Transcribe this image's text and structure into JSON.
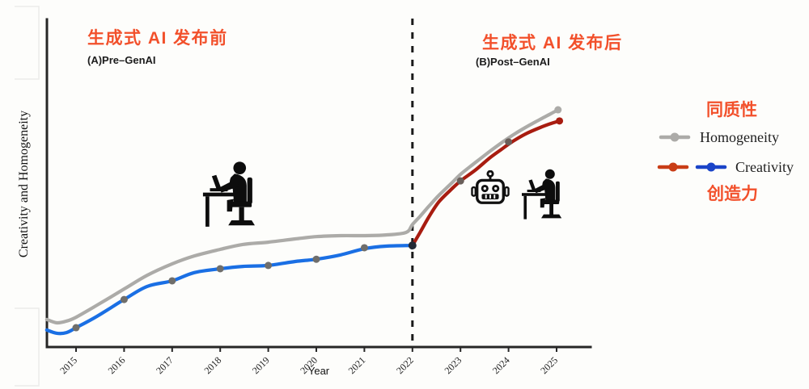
{
  "panels": {
    "pre_title_zh": "生成式 AI 发布前",
    "pre_subtitle": "(A)Pre–GenAI",
    "post_title_zh": "生成式 AI 发布后",
    "post_subtitle": "(B)Post–GenAI"
  },
  "legend": {
    "homogeneity_zh": "同质性",
    "homogeneity_label": "Homogeneity",
    "creativity_label": "Creativity",
    "creativity_zh": "创造力"
  },
  "axes": {
    "ylabel": "Creativity and Homogeneity",
    "xlabel": "Year"
  },
  "colors": {
    "accent_red_text": "#f2502b",
    "homogeneity_line": "#acaba8",
    "creativity_pre_line": "#1a6fe4",
    "creativity_post_line": "#a81c10",
    "legend_creativity_red": "#c93d16",
    "legend_creativity_blue": "#1a44c8",
    "observed_dot": "#6f6e6b",
    "junction_dot": "#232a36",
    "axis": "#262626"
  },
  "chart_data": {
    "type": "line",
    "title": "",
    "xlabel": "Year",
    "ylabel": "Creativity and Homogeneity",
    "x_ticks": [
      2015,
      2016,
      2017,
      2018,
      2019,
      2020,
      2021,
      2022,
      2023,
      2024,
      2025
    ],
    "xlim": [
      2014.4,
      2025.7
    ],
    "ylim": [
      0,
      1
    ],
    "grid": false,
    "legend_position": "right",
    "event_line_x": 2022,
    "series": [
      {
        "name": "Homogeneity",
        "color_key": "homogeneity_line",
        "points": [
          [
            2014.39,
            0.084
          ],
          [
            2014.6,
            0.074
          ],
          [
            2014.8,
            0.079
          ],
          [
            2015,
            0.091
          ],
          [
            2015.44,
            0.128
          ],
          [
            2016,
            0.177
          ],
          [
            2016.48,
            0.219
          ],
          [
            2017,
            0.254
          ],
          [
            2017.46,
            0.278
          ],
          [
            2018,
            0.298
          ],
          [
            2018.47,
            0.313
          ],
          [
            2019,
            0.32
          ],
          [
            2019.56,
            0.33
          ],
          [
            2020,
            0.337
          ],
          [
            2020.5,
            0.34
          ],
          [
            2021,
            0.34
          ],
          [
            2021.45,
            0.342
          ],
          [
            2021.87,
            0.35
          ],
          [
            2022,
            0.374
          ],
          [
            2022.16,
            0.399
          ],
          [
            2022.35,
            0.431
          ],
          [
            2022.55,
            0.463
          ],
          [
            2022.8,
            0.498
          ],
          [
            2023,
            0.527
          ],
          [
            2023.3,
            0.562
          ],
          [
            2023.6,
            0.596
          ],
          [
            2023.85,
            0.623
          ],
          [
            2024.07,
            0.645
          ],
          [
            2024.35,
            0.67
          ],
          [
            2024.66,
            0.695
          ],
          [
            2024.88,
            0.712
          ],
          [
            2025.03,
            0.724
          ]
        ]
      },
      {
        "name": "Creativity (pre-GenAI)",
        "color_key": "creativity_pre_line",
        "points": [
          [
            2014.39,
            0.052
          ],
          [
            2014.6,
            0.042
          ],
          [
            2014.8,
            0.044
          ],
          [
            2015,
            0.059
          ],
          [
            2015.44,
            0.094
          ],
          [
            2016,
            0.145
          ],
          [
            2016.48,
            0.185
          ],
          [
            2017,
            0.202
          ],
          [
            2017.46,
            0.227
          ],
          [
            2018,
            0.239
          ],
          [
            2018.47,
            0.246
          ],
          [
            2019,
            0.249
          ],
          [
            2019.56,
            0.261
          ],
          [
            2020,
            0.268
          ],
          [
            2020.5,
            0.281
          ],
          [
            2021,
            0.3
          ],
          [
            2021.45,
            0.308
          ],
          [
            2022,
            0.31
          ]
        ]
      },
      {
        "name": "Creativity (post-GenAI)",
        "color_key": "creativity_post_line",
        "points": [
          [
            2022,
            0.31
          ],
          [
            2022.16,
            0.35
          ],
          [
            2022.35,
            0.399
          ],
          [
            2022.55,
            0.443
          ],
          [
            2022.8,
            0.48
          ],
          [
            2023,
            0.507
          ],
          [
            2023.3,
            0.539
          ],
          [
            2023.6,
            0.576
          ],
          [
            2023.85,
            0.603
          ],
          [
            2024.07,
            0.626
          ],
          [
            2024.35,
            0.65
          ],
          [
            2024.66,
            0.67
          ],
          [
            2024.88,
            0.682
          ],
          [
            2025.06,
            0.69
          ]
        ]
      }
    ],
    "observed_points": [
      [
        2015,
        0.059
      ],
      [
        2016,
        0.145
      ],
      [
        2017,
        0.202
      ],
      [
        2018,
        0.239
      ],
      [
        2019,
        0.249
      ],
      [
        2020,
        0.268
      ],
      [
        2021,
        0.303
      ],
      [
        2022,
        0.31
      ],
      [
        2023,
        0.507
      ],
      [
        2024,
        0.626
      ]
    ],
    "line_end_caps": [
      {
        "series": "Homogeneity",
        "point": [
          2025.03,
          0.724
        ]
      },
      {
        "series": "Creativity (post-GenAI)",
        "point": [
          2025.06,
          0.69
        ]
      }
    ]
  },
  "icons": {
    "pre_panel": "person-working-at-laptop-icon",
    "post_panel": [
      "robot-icon",
      "person-working-at-laptop-icon"
    ]
  }
}
